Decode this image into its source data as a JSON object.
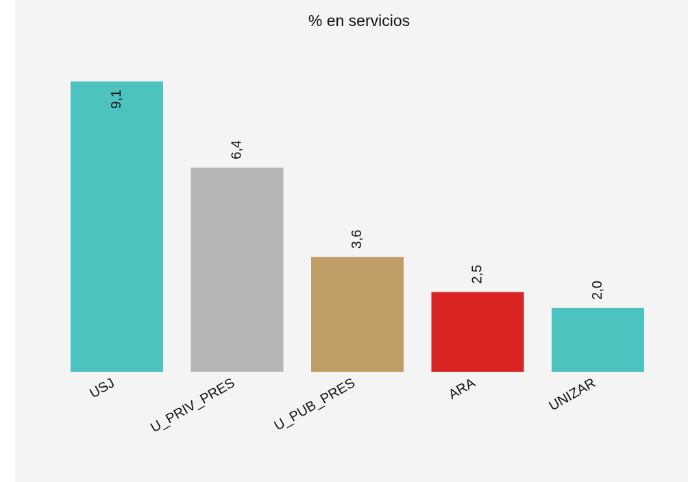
{
  "chart_data": {
    "type": "bar",
    "title": "% en servicios",
    "categories": [
      "USJ",
      "U_PRIV_PRES",
      "U_PUB_PRES",
      "ARA",
      "UNIZAR"
    ],
    "values": [
      9.1,
      6.4,
      3.6,
      2.5,
      2.0
    ],
    "value_labels": [
      "9,1",
      "6,4",
      "3,6",
      "2,5",
      "2,0"
    ],
    "colors": [
      "#4cc3bf",
      "#b5b5b5",
      "#bf9d66",
      "#da2424",
      "#4cc3bf"
    ]
  }
}
